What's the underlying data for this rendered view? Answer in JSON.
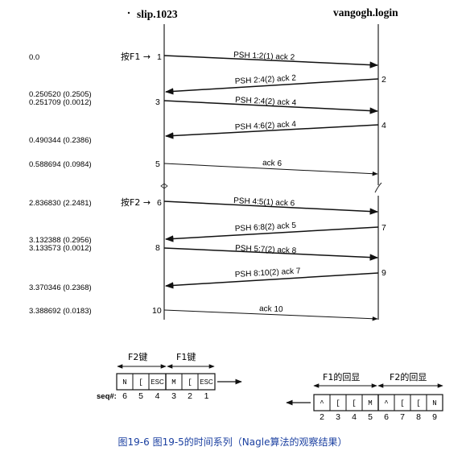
{
  "hosts": {
    "left": "slip.1023",
    "right": "vangogh.login"
  },
  "key_press": {
    "f1": "按F1 →",
    "f2": "按F2 →"
  },
  "time_labels": [
    "0.0",
    "0.250520 (0.2505)",
    "0.251709 (0.0012)",
    "0.490344 (0.2386)",
    "0.588694 (0.0984)",
    "2.836830 (2.2481)",
    "3.132388 (0.2956)",
    "3.133573 (0.0012)",
    "3.370346 (0.2368)",
    "3.388692 (0.0183)"
  ],
  "left_numbers": [
    "1",
    "3",
    "5",
    "6",
    "8",
    "10"
  ],
  "right_numbers": [
    "2",
    "4",
    "7",
    "9"
  ],
  "segments": [
    {
      "label": "PSH 1:2(1) ack 2",
      "dir": "right"
    },
    {
      "label": "PSH 2:4(2) ack 2",
      "dir": "left"
    },
    {
      "label": "PSH 2:4(2) ack 4",
      "dir": "right"
    },
    {
      "label": "PSH 4:6(2) ack 4",
      "dir": "left"
    },
    {
      "label": "ack 6",
      "dir": "right"
    },
    {
      "label": "PSH 4:5(1) ack 6",
      "dir": "right"
    },
    {
      "label": "PSH 6:8(2) ack 5",
      "dir": "left"
    },
    {
      "label": "PSH 5:7(2) ack 8",
      "dir": "right"
    },
    {
      "label": "PSH 8:10(2) ack 7",
      "dir": "left"
    },
    {
      "label": "ack 10",
      "dir": "right"
    }
  ],
  "key_groups": {
    "f2": "F2键",
    "f1": "F1键"
  },
  "sent_cells": [
    "N",
    "[",
    "ESC",
    "M",
    "[",
    "ESC"
  ],
  "sent_seq_label": "seq#:",
  "sent_seq": [
    "6",
    "5",
    "4",
    "3",
    "2",
    "1"
  ],
  "echo_groups": {
    "f1": "F1的回显",
    "f2": "F2的回显"
  },
  "echo_cells": [
    "^",
    "[",
    "[",
    "M",
    "^",
    "[",
    "[",
    "N"
  ],
  "echo_seq": [
    "2",
    "3",
    "4",
    "5",
    "6",
    "7",
    "8",
    "9"
  ],
  "caption": "图19-6   图19-5的时间系列（Nagle算法的观察结果）"
}
